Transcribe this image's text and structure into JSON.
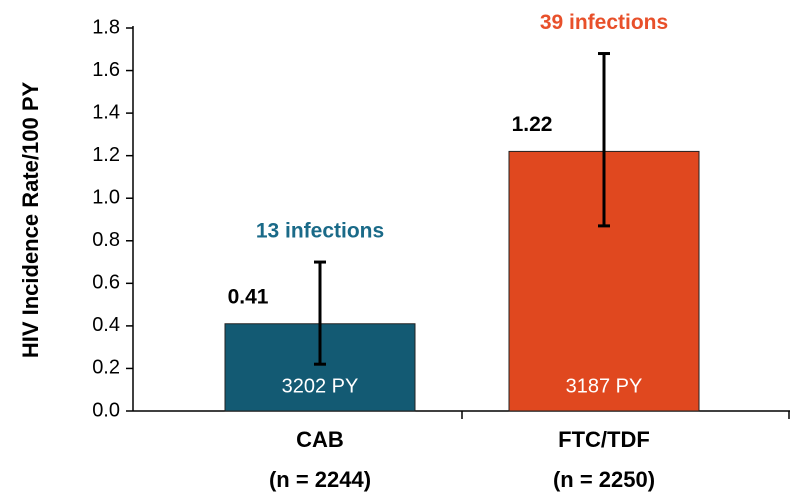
{
  "chart_data": {
    "type": "bar",
    "y_label": "HIV Incidence Rate/100 PY",
    "categories": [
      "CAB",
      "FTC/TDF"
    ],
    "category_sublabels": [
      "(n = 2244)",
      "(n = 2250)"
    ],
    "values": [
      0.41,
      1.22
    ],
    "lower": [
      0.22,
      0.87
    ],
    "upper": [
      0.7,
      1.68
    ],
    "colors": [
      "#135a73",
      "#e0481f"
    ],
    "label_colors": [
      "#1a6a88",
      "#e8502a"
    ],
    "infections": [
      "13 infections",
      "39 infections"
    ],
    "person_years": [
      "3202 PY",
      "3187 PY"
    ],
    "ylim": [
      0,
      1.8
    ],
    "yticks": [
      {
        "value": 0,
        "label": "0.0"
      },
      0.2,
      0.4,
      0.6,
      0.8,
      {
        "value": 1,
        "label": "1.0"
      },
      1.2,
      1.4,
      1.6,
      1.8
    ]
  }
}
